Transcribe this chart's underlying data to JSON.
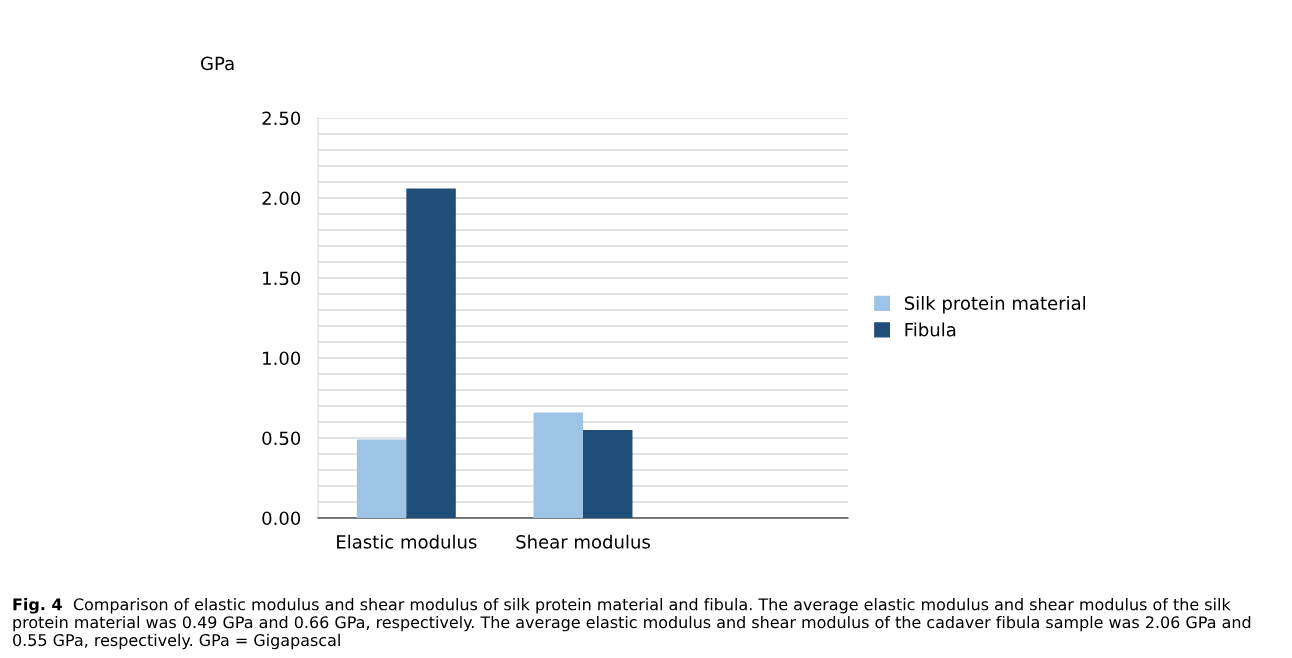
{
  "chart_data": {
    "type": "bar",
    "ylabel": "GPa",
    "categories": [
      "Elastic modulus",
      "Shear modulus",
      null
    ],
    "series": [
      {
        "name": "Silk protein material",
        "color": "#9dc3e6",
        "values": [
          0.49,
          0.66,
          null
        ]
      },
      {
        "name": "Fibula",
        "color": "#1f4e79",
        "values": [
          2.06,
          0.55,
          null
        ]
      }
    ],
    "ylim": [
      0,
      2.5
    ],
    "yticks": [
      {
        "value": 0,
        "label": "0.00"
      },
      {
        "value": 0.1,
        "label": null
      },
      {
        "value": 0.2,
        "label": null
      },
      {
        "value": 0.3,
        "label": null
      },
      {
        "value": 0.4,
        "label": null
      },
      {
        "value": 0.5,
        "label": "0.50"
      },
      {
        "value": 0.6,
        "label": null
      },
      {
        "value": 0.7,
        "label": null
      },
      {
        "value": 0.8,
        "label": null
      },
      {
        "value": 0.9,
        "label": null
      },
      {
        "value": 1.0,
        "label": "1.00"
      },
      {
        "value": 1.1,
        "label": null
      },
      {
        "value": 1.2,
        "label": null
      },
      {
        "value": 1.3,
        "label": null
      },
      {
        "value": 1.4,
        "label": null
      },
      {
        "value": 1.5,
        "label": "1.50"
      },
      {
        "value": 1.6,
        "label": null
      },
      {
        "value": 1.7,
        "label": null
      },
      {
        "value": 1.8,
        "label": null
      },
      {
        "value": 1.9,
        "label": null
      },
      {
        "value": 2.0,
        "label": "2.00"
      },
      {
        "value": 2.1,
        "label": null
      },
      {
        "value": 2.2,
        "label": null
      },
      {
        "value": 2.3,
        "label": null
      },
      {
        "value": 2.4,
        "label": null
      },
      {
        "value": 2.5,
        "label": "2.50"
      }
    ],
    "grid": "y",
    "legend": "right",
    "annotations": [
      "Fig. 4",
      "Comparison of elastic modulus and shear modulus of silk protein material and fibula. The average elastic modulus and shear modulus of the silk protein material was 0.49 GPa and 0.66 GPa, respectively. The average elastic modulus and shear modulus of the cadaver fibula sample was 2.06 GPa and 0.55 GPa, respectively. GPa = Gigapascal"
    ]
  }
}
